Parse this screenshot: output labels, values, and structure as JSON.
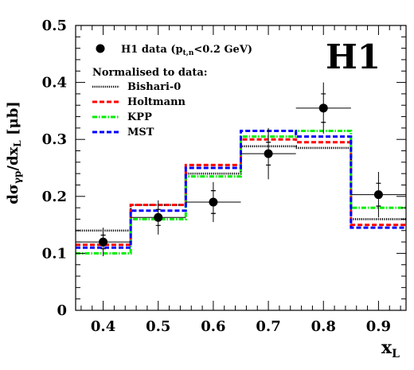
{
  "chart_data": {
    "type": "step",
    "logo": "H1",
    "xlabel": {
      "main": "x",
      "sub": "L"
    },
    "ylabel": {
      "d1": "d",
      "sigma": "σ",
      "sub1": "γp",
      "mid": "/dx",
      "sub2": "L",
      "unit": " [μb]"
    },
    "xlim": [
      0.35,
      0.95
    ],
    "ylim": [
      0,
      0.5
    ],
    "x_ticks": [
      {
        "value": 0.4,
        "label": "0.4"
      },
      {
        "value": 0.5,
        "label": "0.5"
      },
      {
        "value": 0.6,
        "label": "0.6"
      },
      {
        "value": 0.7,
        "label": "0.7"
      },
      {
        "value": 0.8,
        "label": "0.8"
      },
      {
        "value": 0.9,
        "label": "0.9"
      }
    ],
    "y_ticks": [
      {
        "value": 0,
        "label": "0"
      },
      {
        "value": 0.1,
        "label": "0.1"
      },
      {
        "value": 0.2,
        "label": "0.2"
      },
      {
        "value": 0.3,
        "label": "0.3"
      },
      {
        "value": 0.4,
        "label": "0.4"
      },
      {
        "value": 0.5,
        "label": "0.5"
      }
    ],
    "bin_edges": [
      0.35,
      0.45,
      0.55,
      0.65,
      0.75,
      0.85,
      0.95
    ],
    "data": {
      "name_main": "H1 data (p",
      "name_sub": "t,n",
      "name_tail": "<0.2 GeV)",
      "x": [
        0.4,
        0.5,
        0.6,
        0.7,
        0.8,
        0.9
      ],
      "y": [
        0.12,
        0.163,
        0.19,
        0.275,
        0.355,
        0.203
      ],
      "stat_err": [
        0.012,
        0.014,
        0.02,
        0.02,
        0.025,
        0.02
      ],
      "tot_err": [
        0.025,
        0.03,
        0.035,
        0.045,
        0.045,
        0.04
      ],
      "x_halfwidth": 0.05
    },
    "legend_header": "Normalised to data:",
    "series": [
      {
        "name": "Bishari-0",
        "color": "#000000",
        "style": "dotted",
        "values": [
          0.14,
          0.185,
          0.24,
          0.288,
          0.285,
          0.16
        ]
      },
      {
        "name": "Holtmann",
        "color": "#ff0000",
        "style": "dashed",
        "values": [
          0.115,
          0.185,
          0.255,
          0.3,
          0.295,
          0.15
        ]
      },
      {
        "name": "KPP",
        "color": "#00ee00",
        "style": "dashdot",
        "values": [
          0.1,
          0.16,
          0.235,
          0.305,
          0.315,
          0.18
        ]
      },
      {
        "name": "MST",
        "color": "#0000ff",
        "style": "dashed",
        "values": [
          0.11,
          0.175,
          0.25,
          0.315,
          0.305,
          0.145
        ]
      }
    ]
  }
}
